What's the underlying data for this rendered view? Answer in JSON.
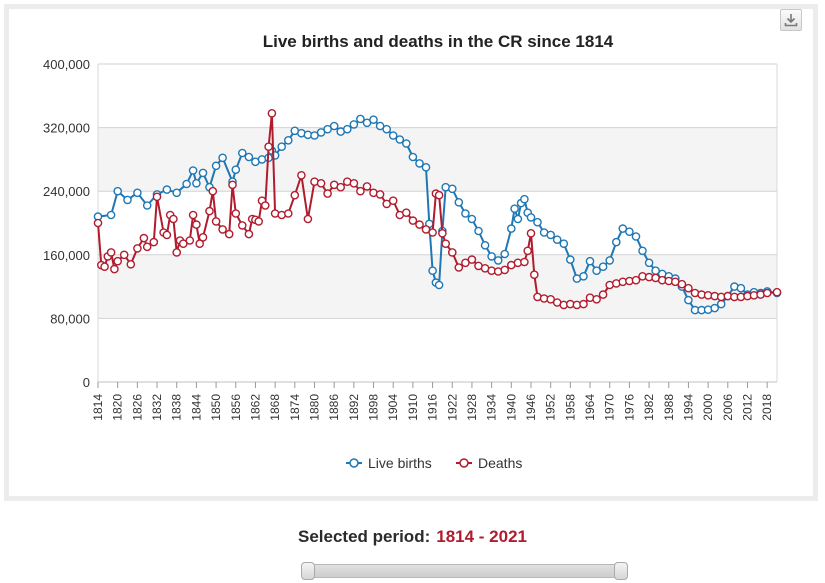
{
  "selected_period": {
    "label": "Selected period:",
    "value": "1814 - 2021"
  },
  "export_icon": "download-icon",
  "colors": {
    "births": "#1f77b4",
    "deaths": "#b01c2e"
  },
  "chart_data": {
    "type": "line",
    "title": "Live births and deaths in the CR since 1814",
    "xlabel": "",
    "ylabel": "",
    "xlim": [
      1814,
      2021
    ],
    "ylim": [
      0,
      400000
    ],
    "yticks": [
      0,
      80000,
      160000,
      240000,
      320000,
      400000
    ],
    "ytick_labels": [
      "0",
      "80,000",
      "160,000",
      "240,000",
      "320,000",
      "400,000"
    ],
    "xticks": [
      1814,
      1820,
      1826,
      1832,
      1838,
      1844,
      1850,
      1856,
      1862,
      1868,
      1874,
      1880,
      1886,
      1892,
      1898,
      1904,
      1910,
      1916,
      1922,
      1928,
      1934,
      1940,
      1946,
      1952,
      1958,
      1964,
      1970,
      1976,
      1982,
      1988,
      1994,
      2000,
      2006,
      2012,
      2018
    ],
    "xtick_labels": [
      "1814",
      "1820",
      "1826",
      "1832",
      "1838",
      "1844",
      "1850",
      "1856",
      "1862",
      "1868",
      "1874",
      "1880",
      "1886",
      "1892",
      "1898",
      "1904",
      "1910",
      "1916",
      "1922",
      "1928",
      "1934",
      "1940",
      "1946",
      "1952",
      "1958",
      "1964",
      "1970",
      "1976",
      "1982",
      "1988",
      "1994",
      "2000",
      "2006",
      "2012",
      "2018"
    ],
    "legend": "bottom-center",
    "series": [
      {
        "name": "Live births",
        "x": [
          1814,
          1818,
          1820,
          1823,
          1826,
          1829,
          1832,
          1835,
          1838,
          1841,
          1843,
          1844,
          1846,
          1848,
          1850,
          1852,
          1855,
          1856,
          1858,
          1860,
          1862,
          1864,
          1866,
          1867,
          1868,
          1870,
          1872,
          1874,
          1876,
          1878,
          1880,
          1882,
          1884,
          1886,
          1888,
          1890,
          1892,
          1894,
          1896,
          1898,
          1900,
          1902,
          1904,
          1906,
          1908,
          1910,
          1912,
          1914,
          1915,
          1916,
          1917,
          1918,
          1919,
          1920,
          1922,
          1924,
          1926,
          1928,
          1930,
          1932,
          1934,
          1936,
          1938,
          1940,
          1941,
          1942,
          1943,
          1944,
          1945,
          1946,
          1948,
          1950,
          1952,
          1954,
          1956,
          1958,
          1960,
          1962,
          1964,
          1966,
          1968,
          1970,
          1972,
          1974,
          1976,
          1978,
          1980,
          1982,
          1984,
          1986,
          1988,
          1990,
          1992,
          1994,
          1996,
          1998,
          2000,
          2002,
          2004,
          2006,
          2008,
          2010,
          2012,
          2014,
          2016,
          2018,
          2021
        ],
        "y": [
          208000,
          210000,
          240000,
          229000,
          238000,
          222000,
          236000,
          242000,
          238000,
          249000,
          266000,
          250000,
          263000,
          245000,
          272000,
          282000,
          252000,
          267000,
          288000,
          283000,
          277000,
          280000,
          282000,
          291000,
          285000,
          296000,
          304000,
          316000,
          313000,
          311000,
          310000,
          314000,
          318000,
          322000,
          315000,
          318000,
          324000,
          331000,
          326000,
          330000,
          322000,
          318000,
          310000,
          305000,
          300000,
          283000,
          275000,
          270000,
          199000,
          140000,
          125000,
          122000,
          190000,
          245000,
          243000,
          226000,
          212000,
          205000,
          190000,
          172000,
          158000,
          153000,
          161000,
          193000,
          218000,
          205000,
          225000,
          230000,
          213000,
          207000,
          201000,
          188000,
          185000,
          179000,
          174000,
          154000,
          130000,
          133000,
          152000,
          140000,
          145000,
          153000,
          176000,
          193000,
          189000,
          183000,
          165000,
          150000,
          140000,
          136000,
          133000,
          130000,
          120000,
          103000,
          90500,
          90500,
          91000,
          93000,
          98000,
          108000,
          120000,
          118000,
          110000,
          113000,
          112000,
          114000,
          112000
        ]
      },
      {
        "name": "Deaths",
        "x": [
          1814,
          1815,
          1816,
          1817,
          1818,
          1819,
          1820,
          1822,
          1824,
          1826,
          1828,
          1829,
          1831,
          1832,
          1834,
          1835,
          1836,
          1837,
          1838,
          1839,
          1840,
          1842,
          1843,
          1844,
          1845,
          1846,
          1848,
          1849,
          1850,
          1852,
          1854,
          1855,
          1856,
          1858,
          1860,
          1861,
          1862,
          1863,
          1864,
          1865,
          1866,
          1867,
          1868,
          1870,
          1872,
          1874,
          1876,
          1878,
          1880,
          1882,
          1884,
          1886,
          1888,
          1890,
          1892,
          1894,
          1896,
          1898,
          1900,
          1902,
          1904,
          1906,
          1908,
          1910,
          1912,
          1914,
          1916,
          1917,
          1918,
          1919,
          1920,
          1922,
          1924,
          1926,
          1928,
          1930,
          1932,
          1934,
          1936,
          1938,
          1940,
          1942,
          1944,
          1945,
          1946,
          1947,
          1948,
          1950,
          1952,
          1954,
          1956,
          1958,
          1960,
          1962,
          1964,
          1966,
          1968,
          1970,
          1972,
          1974,
          1976,
          1978,
          1980,
          1982,
          1984,
          1986,
          1988,
          1990,
          1992,
          1994,
          1996,
          1998,
          2000,
          2002,
          2004,
          2006,
          2008,
          2010,
          2012,
          2014,
          2016,
          2018,
          2021
        ],
        "y": [
          200000,
          147000,
          145000,
          158000,
          163000,
          142000,
          152000,
          160000,
          148000,
          168000,
          181000,
          170000,
          176000,
          233000,
          188000,
          185000,
          210000,
          205000,
          163000,
          178000,
          174000,
          178000,
          210000,
          198000,
          174000,
          182000,
          215000,
          240000,
          202000,
          192000,
          186000,
          248000,
          212000,
          197000,
          186000,
          205000,
          204000,
          202000,
          228000,
          222000,
          296000,
          338000,
          212000,
          210000,
          212000,
          235000,
          260000,
          205000,
          252000,
          250000,
          237000,
          248000,
          245000,
          252000,
          250000,
          240000,
          246000,
          238000,
          236000,
          224000,
          228000,
          210000,
          213000,
          203000,
          198000,
          192000,
          188000,
          237000,
          235000,
          187000,
          174000,
          163000,
          144000,
          150000,
          154000,
          146000,
          143000,
          140000,
          139000,
          141000,
          147000,
          150000,
          151000,
          165000,
          187000,
          135000,
          107000,
          105000,
          104000,
          100000,
          97000,
          98000,
          97000,
          98000,
          106000,
          104000,
          110000,
          122000,
          124000,
          126000,
          127000,
          128000,
          133000,
          132000,
          131000,
          128000,
          127000,
          126000,
          123000,
          118000,
          112000,
          110000,
          109000,
          108000,
          107000,
          108000,
          107000,
          107000,
          108000,
          109000,
          110000,
          112000,
          113000
        ]
      }
    ]
  }
}
